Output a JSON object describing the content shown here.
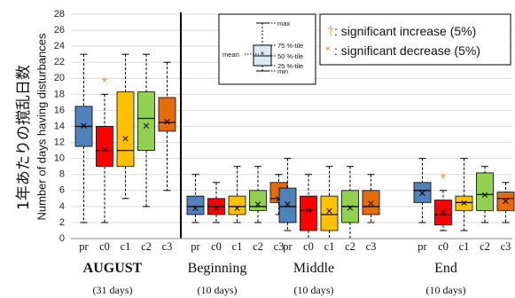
{
  "chart_data": {
    "type": "box",
    "ylabel_jp": "1年あたりの撹乱日数",
    "ylabel_en": "Number of days having disturbances",
    "ylim": [
      0,
      28
    ],
    "yticks": [
      "0",
      "2",
      "4",
      "6",
      "8",
      "10",
      "12",
      "14",
      "16",
      "18",
      "20",
      "22",
      "24",
      "26",
      "28"
    ],
    "grid": true,
    "category_labels": [
      "pr",
      "c0",
      "c1",
      "c2",
      "c3"
    ],
    "colors": {
      "pr": "#4f81bd",
      "c0": "#ff0000",
      "c1": "#ffc000",
      "c2": "#92d050",
      "c3": "#e46c0a"
    },
    "groups": [
      {
        "label": "AUGUST",
        "sublabel": "(31 days)",
        "boxes": [
          {
            "cat": "pr",
            "min": 2,
            "q1": 11.5,
            "median": 14,
            "q3": 16.5,
            "max": 23,
            "mean": 14.1
          },
          {
            "cat": "c0",
            "min": 2,
            "q1": 9,
            "median": 11,
            "q3": 14,
            "max": 18,
            "mean": 11.1
          },
          {
            "cat": "c1",
            "min": 5,
            "q1": 9,
            "median": 11,
            "q3": 18.3,
            "max": 23,
            "mean": 12.5
          },
          {
            "cat": "c2",
            "min": 4,
            "q1": 11,
            "median": 15,
            "q3": 18.3,
            "max": 23,
            "mean": 14.1
          },
          {
            "cat": "c3",
            "min": 6,
            "q1": 13.4,
            "median": 14.5,
            "q3": 17.6,
            "max": 22,
            "mean": 14.6
          }
        ],
        "sig": [
          {
            "cat": "c0",
            "mark": "*"
          }
        ]
      },
      {
        "label": "Beginning",
        "sublabel": "(10 days)",
        "boxes": [
          {
            "cat": "pr",
            "min": 2,
            "q1": 3,
            "median": 4,
            "q3": 5.3,
            "max": 8,
            "mean": 3.8
          },
          {
            "cat": "c0",
            "min": 2,
            "q1": 3,
            "median": 4,
            "q3": 5,
            "max": 7,
            "mean": 3.8
          },
          {
            "cat": "c1",
            "min": 2,
            "q1": 3,
            "median": 4,
            "q3": 5.3,
            "max": 9,
            "mean": 3.8
          },
          {
            "cat": "c2",
            "min": 2,
            "q1": 3.5,
            "median": 4,
            "q3": 6,
            "max": 9,
            "mean": 4.3
          },
          {
            "cat": "c3",
            "min": 3,
            "q1": 4.5,
            "median": 5,
            "q3": 7,
            "max": 8,
            "mean": 5.0
          }
        ],
        "sig": []
      },
      {
        "label": "Middle",
        "sublabel": "(10 days)",
        "boxes": [
          {
            "cat": "pr",
            "min": 1,
            "q1": 2,
            "median": 4,
            "q3": 6.3,
            "max": 10,
            "mean": 4.3
          },
          {
            "cat": "c0",
            "min": 0,
            "q1": 1,
            "median": 3.5,
            "q3": 5.3,
            "max": 8,
            "mean": 3.6
          },
          {
            "cat": "c1",
            "min": 0,
            "q1": 1,
            "median": 3,
            "q3": 5.3,
            "max": 9,
            "mean": 3.5
          },
          {
            "cat": "c2",
            "min": 0,
            "q1": 2,
            "median": 4,
            "q3": 6,
            "max": 9,
            "mean": 3.9
          },
          {
            "cat": "c3",
            "min": 2,
            "q1": 3,
            "median": 4,
            "q3": 6,
            "max": 8,
            "mean": 4.4
          }
        ],
        "sig": []
      },
      {
        "label": "End",
        "sublabel": "(10 days)",
        "boxes": [
          {
            "cat": "pr",
            "min": 2,
            "q1": 4.5,
            "median": 6,
            "q3": 7,
            "max": 10,
            "mean": 5.7
          },
          {
            "cat": "c0",
            "min": 1,
            "q1": 1.7,
            "median": 3,
            "q3": 4.8,
            "max": 6,
            "mean": 3.4
          },
          {
            "cat": "c1",
            "min": 1,
            "q1": 3.5,
            "median": 4.5,
            "q3": 5.3,
            "max": 10,
            "mean": 4.5
          },
          {
            "cat": "c2",
            "min": 2,
            "q1": 3.5,
            "median": 5.5,
            "q3": 8.2,
            "max": 9,
            "mean": 5.5
          },
          {
            "cat": "c3",
            "min": 2,
            "q1": 3.5,
            "median": 5,
            "q3": 5.8,
            "max": 7,
            "mean": 4.7
          }
        ],
        "sig": [
          {
            "cat": "c0",
            "mark": "*"
          }
        ]
      }
    ],
    "legend": {
      "position": "top-right",
      "items": [
        {
          "mark": "†",
          "text": ": significant increase (5%)"
        },
        {
          "mark": "*",
          "text": ": significant decrease (5%)"
        }
      ]
    },
    "box_key": {
      "max": "max",
      "q3": "75 %-tile",
      "median": "50 %-tile",
      "q1": "25 %-tile",
      "min": "min",
      "mean": "mean"
    }
  }
}
